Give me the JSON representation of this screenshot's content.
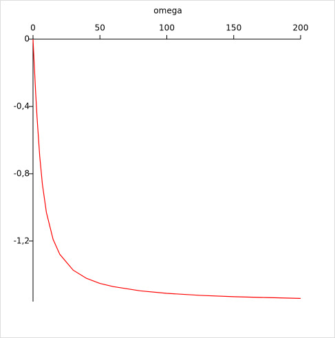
{
  "chart_data": {
    "type": "line",
    "x_label": "omega",
    "x": [
      0,
      1,
      2,
      3,
      5,
      7,
      10,
      15,
      20,
      30,
      40,
      50,
      60,
      80,
      100,
      125,
      150,
      175,
      200
    ],
    "series": [
      {
        "color": "#ff0000",
        "values": [
          0,
          -0.165,
          -0.322,
          -0.464,
          -0.695,
          -0.862,
          -1.03,
          -1.19,
          -1.279,
          -1.373,
          -1.422,
          -1.452,
          -1.471,
          -1.496,
          -1.511,
          -1.523,
          -1.531,
          -1.536,
          -1.541
        ]
      }
    ],
    "xlim": [
      0,
      200
    ],
    "xticks": [
      0,
      50,
      100,
      150,
      200
    ],
    "ylim": [
      -1.56,
      0
    ],
    "yticks": [
      0,
      {
        "value": -0.4,
        "label": "-0,4"
      },
      {
        "value": -0.8,
        "label": "-0,8"
      },
      {
        "value": -1.2,
        "label": "-1,2"
      }
    ]
  }
}
